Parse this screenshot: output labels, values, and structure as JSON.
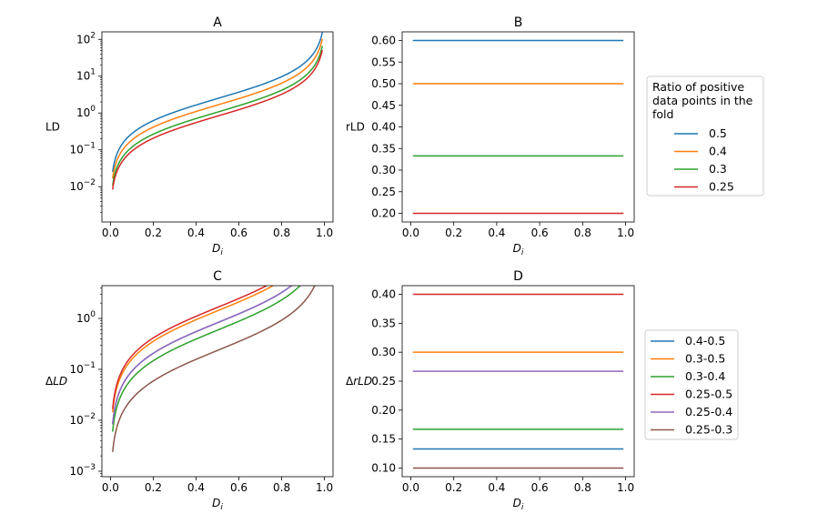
{
  "chart_data": [
    {
      "id": "A",
      "type": "line",
      "title": "A",
      "xlabel": "D",
      "xlabel_sub": "i",
      "ylabel": "LD",
      "yscale": "log",
      "xlim": [
        -0.04,
        1.04
      ],
      "ylim": [
        0.0011,
        160
      ],
      "x_ticks": [
        "0.0",
        "0.2",
        "0.4",
        "0.6",
        "0.8",
        "1.0"
      ],
      "y_ticks": [
        {
          "base": "10",
          "exp": "-2"
        },
        {
          "base": "10",
          "exp": "-1"
        },
        {
          "base": "10",
          "exp": "0"
        },
        {
          "base": "10",
          "exp": "1"
        },
        {
          "base": "10",
          "exp": "2"
        }
      ],
      "formula": "ld",
      "series": [
        {
          "name": "0.5",
          "ratio": 0.5,
          "color": "#1f77b4"
        },
        {
          "name": "0.4",
          "ratio": 0.4,
          "color": "#ff7f0e"
        },
        {
          "name": "0.3",
          "ratio": 0.3,
          "color": "#2ca02c"
        },
        {
          "name": "0.25",
          "ratio": 0.25,
          "color": "#d62728"
        }
      ]
    },
    {
      "id": "B",
      "type": "line",
      "title": "B",
      "xlabel": "D",
      "xlabel_sub": "i",
      "ylabel": "rLD",
      "yscale": "linear",
      "xlim": [
        -0.04,
        1.04
      ],
      "ylim": [
        0.18,
        0.62
      ],
      "x_ticks": [
        "0.0",
        "0.2",
        "0.4",
        "0.6",
        "0.8",
        "1.0"
      ],
      "y_ticks": [
        "0.20",
        "0.25",
        "0.30",
        "0.35",
        "0.40",
        "0.45",
        "0.50",
        "0.55",
        "0.60"
      ],
      "series": [
        {
          "name": "0.5",
          "value": 0.6,
          "color": "#1f77b4"
        },
        {
          "name": "0.4",
          "value": 0.5,
          "color": "#ff7f0e"
        },
        {
          "name": "0.3",
          "value": 0.333,
          "color": "#2ca02c"
        },
        {
          "name": "0.25",
          "value": 0.2,
          "color": "#d62728"
        }
      ],
      "legend": {
        "title": [
          "Ratio of positive",
          "data points in the",
          "fold"
        ],
        "entries": [
          {
            "label": "0.5",
            "color": "#1f77b4"
          },
          {
            "label": "0.4",
            "color": "#ff7f0e"
          },
          {
            "label": "0.3",
            "color": "#2ca02c"
          },
          {
            "label": "0.25",
            "color": "#d62728"
          }
        ]
      }
    },
    {
      "id": "C",
      "type": "line",
      "title": "C",
      "xlabel": "D",
      "xlabel_sub": "i",
      "ylabel": "ΔLD",
      "yscale": "log",
      "xlim": [
        -0.04,
        1.04
      ],
      "ylim": [
        0.00078,
        4.4
      ],
      "x_ticks": [
        "0.0",
        "0.2",
        "0.4",
        "0.6",
        "0.8",
        "1.0"
      ],
      "y_ticks": [
        {
          "base": "10",
          "exp": "-3"
        },
        {
          "base": "10",
          "exp": "-2"
        },
        {
          "base": "10",
          "exp": "-1"
        },
        {
          "base": "10",
          "exp": "0"
        }
      ],
      "formula": "dld",
      "series": [
        {
          "name": "0.4-0.5",
          "a": 0.4,
          "b": 0.5,
          "color": "#1f77b4"
        },
        {
          "name": "0.3-0.5",
          "a": 0.3,
          "b": 0.5,
          "color": "#ff7f0e"
        },
        {
          "name": "0.3-0.4",
          "a": 0.3,
          "b": 0.4,
          "color": "#2ca02c"
        },
        {
          "name": "0.25-0.5",
          "a": 0.25,
          "b": 0.5,
          "color": "#d62728"
        },
        {
          "name": "0.25-0.4",
          "a": 0.25,
          "b": 0.4,
          "color": "#9467bd"
        },
        {
          "name": "0.25-0.3",
          "a": 0.25,
          "b": 0.3,
          "color": "#8c564b"
        }
      ]
    },
    {
      "id": "D",
      "type": "line",
      "title": "D",
      "xlabel": "D",
      "xlabel_sub": "i",
      "ylabel": "ΔrLD",
      "yscale": "linear",
      "xlim": [
        -0.04,
        1.04
      ],
      "ylim": [
        0.085,
        0.415
      ],
      "x_ticks": [
        "0.0",
        "0.2",
        "0.4",
        "0.6",
        "0.8",
        "1.0"
      ],
      "y_ticks": [
        "0.10",
        "0.15",
        "0.20",
        "0.25",
        "0.30",
        "0.35",
        "0.40"
      ],
      "series": [
        {
          "name": "0.4-0.5",
          "value": 0.133,
          "color": "#1f77b4"
        },
        {
          "name": "0.3-0.5",
          "value": 0.3,
          "color": "#ff7f0e"
        },
        {
          "name": "0.3-0.4",
          "value": 0.167,
          "color": "#2ca02c"
        },
        {
          "name": "0.25-0.5",
          "value": 0.4,
          "color": "#d62728"
        },
        {
          "name": "0.25-0.4",
          "value": 0.267,
          "color": "#9467bd"
        },
        {
          "name": "0.25-0.3",
          "value": 0.1,
          "color": "#8c564b"
        }
      ],
      "legend": {
        "title": [],
        "entries": [
          {
            "label": "0.4-0.5",
            "color": "#1f77b4"
          },
          {
            "label": "0.3-0.5",
            "color": "#ff7f0e"
          },
          {
            "label": "0.3-0.4",
            "color": "#2ca02c"
          },
          {
            "label": "0.25-0.5",
            "color": "#d62728"
          },
          {
            "label": "0.25-0.4",
            "color": "#9467bd"
          },
          {
            "label": "0.25-0.3",
            "color": "#8c564b"
          }
        ]
      }
    }
  ]
}
